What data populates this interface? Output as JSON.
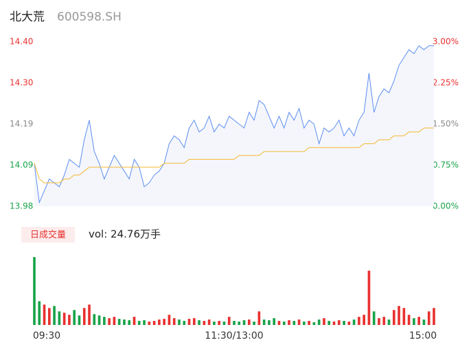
{
  "chart_data": [
    {
      "type": "line",
      "title": "北大荒",
      "subtitle": "600598.SH",
      "ylim": [
        13.98,
        14.4
      ],
      "yticks": [
        {
          "value": 14.4,
          "label": "14.40"
        },
        {
          "value": 14.295,
          "label": "14.30"
        },
        14.19,
        {
          "value": 14.085,
          "label": "14.09"
        },
        13.98
      ],
      "y2lim": [
        0,
        3
      ],
      "y2ticks": [
        {
          "value": 3,
          "label": "3.00%"
        },
        {
          "value": 2.25,
          "label": "2.25%"
        },
        {
          "value": 1.5,
          "label": "1.50%"
        },
        {
          "value": 0.75,
          "label": "0.75%"
        },
        {
          "value": 0,
          "label": "0.00%"
        }
      ],
      "prev_close": 14.19,
      "up_color": "#e8312f",
      "down_color": "#18a34a",
      "flat_color": "#888888",
      "xlim": [
        0,
        80
      ],
      "series": [
        {
          "color": "#5b8def",
          "values": [
            14.09,
            13.99,
            14.02,
            14.05,
            14.04,
            14.03,
            14.06,
            14.1,
            14.09,
            14.08,
            14.15,
            14.2,
            14.12,
            14.09,
            14.05,
            14.08,
            14.11,
            14.09,
            14.07,
            14.05,
            14.1,
            14.08,
            14.03,
            14.04,
            14.06,
            14.07,
            14.09,
            14.14,
            14.16,
            14.15,
            14.13,
            14.18,
            14.2,
            14.17,
            14.18,
            14.21,
            14.17,
            14.19,
            14.18,
            14.21,
            14.2,
            14.19,
            14.18,
            14.22,
            14.2,
            14.25,
            14.24,
            14.21,
            14.18,
            14.21,
            14.18,
            14.22,
            14.2,
            14.23,
            14.18,
            14.2,
            14.19,
            14.14,
            14.18,
            14.17,
            14.18,
            14.2,
            14.16,
            14.18,
            14.16,
            14.2,
            14.22,
            14.32,
            14.22,
            14.26,
            14.28,
            14.27,
            14.3,
            14.34,
            14.36,
            14.38,
            14.37,
            14.39,
            14.38,
            14.39,
            14.39
          ]
        },
        {
          "color": "#f5b82e",
          "values": [
            14.09,
            14.05,
            14.04,
            14.04,
            14.04,
            14.04,
            14.05,
            14.05,
            14.06,
            14.06,
            14.07,
            14.08,
            14.08,
            14.08,
            14.08,
            14.08,
            14.08,
            14.08,
            14.08,
            14.08,
            14.08,
            14.08,
            14.08,
            14.08,
            14.08,
            14.08,
            14.09,
            14.09,
            14.09,
            14.09,
            14.09,
            14.1,
            14.1,
            14.1,
            14.1,
            14.1,
            14.1,
            14.1,
            14.1,
            14.1,
            14.1,
            14.11,
            14.11,
            14.11,
            14.11,
            14.11,
            14.12,
            14.12,
            14.12,
            14.12,
            14.12,
            14.12,
            14.12,
            14.12,
            14.12,
            14.13,
            14.13,
            14.13,
            14.13,
            14.13,
            14.13,
            14.13,
            14.13,
            14.13,
            14.13,
            14.13,
            14.14,
            14.14,
            14.14,
            14.15,
            14.15,
            14.15,
            14.16,
            14.16,
            14.16,
            14.17,
            14.17,
            14.17,
            14.18,
            14.18,
            14.18
          ]
        }
      ]
    },
    {
      "type": "bar",
      "title": "日成交量",
      "annotation": "vol: 24.76万手",
      "ylim": [
        0,
        100
      ],
      "xlim": [
        0,
        80
      ],
      "xticks": [
        {
          "value": 0,
          "label": "09:30"
        },
        {
          "value": 40,
          "label": "11:30/13:00"
        },
        {
          "value": 80,
          "label": "15:00"
        }
      ],
      "up_color": "#e8312f",
      "down_color": "#18a34a",
      "values": [
        100,
        35,
        30,
        25,
        28,
        20,
        18,
        15,
        22,
        14,
        25,
        30,
        16,
        14,
        12,
        10,
        12,
        9,
        8,
        7,
        12,
        6,
        7,
        5,
        6,
        8,
        9,
        15,
        10,
        8,
        6,
        9,
        10,
        7,
        6,
        8,
        5,
        6,
        5,
        12,
        6,
        5,
        7,
        8,
        5,
        20,
        8,
        7,
        10,
        6,
        5,
        7,
        6,
        8,
        5,
        6,
        4,
        8,
        10,
        6,
        5,
        7,
        6,
        5,
        8,
        12,
        15,
        80,
        20,
        10,
        12,
        8,
        22,
        28,
        25,
        15,
        10,
        12,
        8,
        20,
        25
      ]
    }
  ]
}
